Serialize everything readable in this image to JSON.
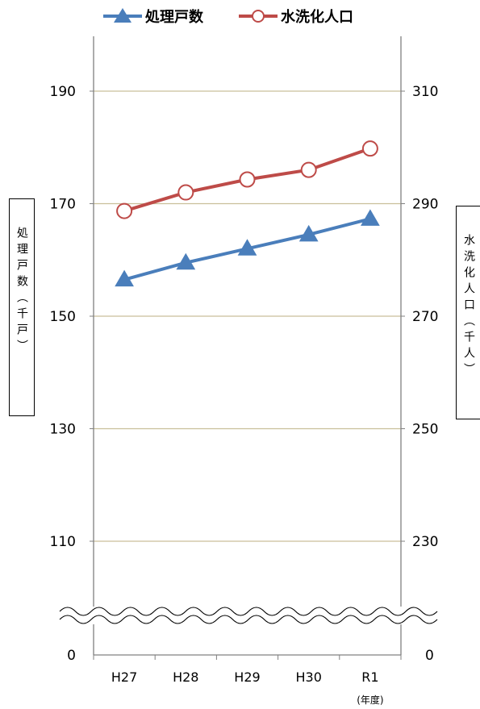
{
  "chart_data": {
    "type": "line",
    "categories": [
      "H27",
      "H28",
      "H29",
      "H30",
      "R1"
    ],
    "x_unit_label": "(年度)",
    "series": [
      {
        "name": "処理戸数",
        "axis": "left",
        "color": "#4A7EBB",
        "marker": "triangle",
        "values": [
          156.5,
          159.5,
          162,
          164.5,
          167.3
        ]
      },
      {
        "name": "水洗化人口",
        "axis": "right",
        "color": "#BE4B48",
        "marker": "open-circle",
        "values": [
          288.7,
          292,
          294.3,
          296,
          299.8
        ]
      }
    ],
    "y_left": {
      "label": "処理戸数（千戸）",
      "ticks": [
        110,
        130,
        150,
        170,
        190
      ],
      "bottom_tick": 0,
      "lim": [
        100,
        200
      ],
      "break": true
    },
    "y_right": {
      "label": "水洗化人口（千人）",
      "ticks": [
        230,
        250,
        270,
        290,
        310
      ],
      "bottom_tick": 0,
      "lim": [
        220,
        320
      ],
      "break": true
    },
    "grid": true,
    "legend_position": "top"
  }
}
